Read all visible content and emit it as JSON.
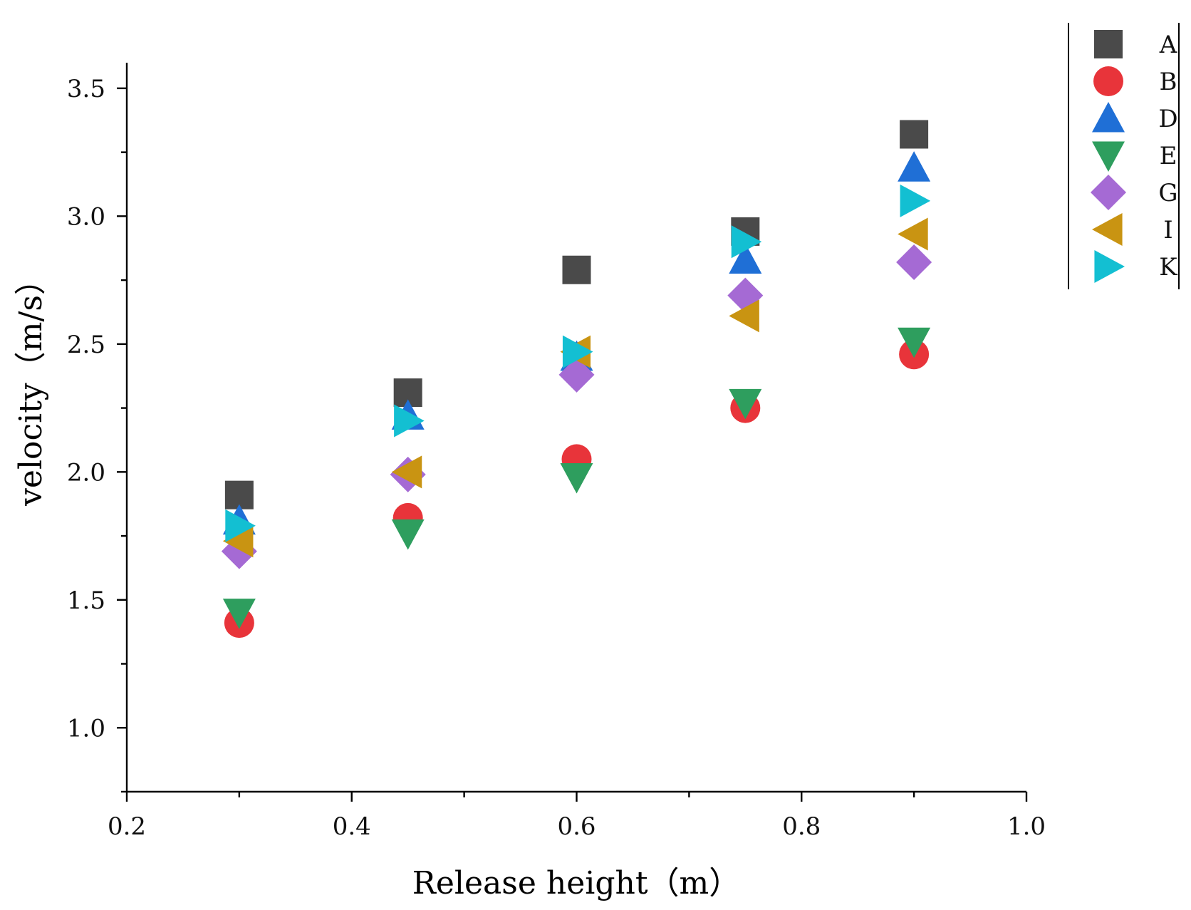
{
  "chart_data": {
    "type": "scatter",
    "title": "",
    "xlabel": "Release height（m）",
    "ylabel": "velocity（m/s）",
    "xlim": [
      0.2,
      1.0
    ],
    "ylim": [
      0.75,
      3.6
    ],
    "x_ticks": [
      0.2,
      0.4,
      0.6,
      0.8,
      1.0
    ],
    "x_tick_labels": [
      "0.2",
      "0.4",
      "0.6",
      "0.8",
      "1.0"
    ],
    "y_ticks": [
      1.0,
      1.5,
      2.0,
      2.5,
      3.0,
      3.5
    ],
    "y_tick_labels": [
      "1.0",
      "1.5",
      "2.0",
      "2.5",
      "3.0",
      "3.5"
    ],
    "grid": false,
    "legend_position": "top-right",
    "x": [
      0.3,
      0.45,
      0.6,
      0.75,
      0.9
    ],
    "series": [
      {
        "name": "A",
        "marker": "square",
        "color": "#4a4a4a",
        "values": [
          1.91,
          2.31,
          2.79,
          2.94,
          3.32
        ]
      },
      {
        "name": "B",
        "marker": "circle",
        "color": "#e8343a",
        "values": [
          1.41,
          1.82,
          2.05,
          2.25,
          2.46
        ]
      },
      {
        "name": "D",
        "marker": "triangle-up",
        "color": "#1f6fd6",
        "values": [
          1.81,
          2.22,
          2.45,
          2.83,
          3.19
        ]
      },
      {
        "name": "E",
        "marker": "triangle-down",
        "color": "#2e9e5e",
        "values": [
          1.45,
          1.76,
          1.98,
          2.27,
          2.51
        ]
      },
      {
        "name": "G",
        "marker": "diamond",
        "color": "#a56ad4",
        "values": [
          1.69,
          1.99,
          2.38,
          2.69,
          2.82
        ]
      },
      {
        "name": "I",
        "marker": "triangle-left",
        "color": "#c99412",
        "values": [
          1.73,
          2.0,
          2.47,
          2.61,
          2.93
        ]
      },
      {
        "name": "K",
        "marker": "triangle-right",
        "color": "#13bfd2",
        "values": [
          1.79,
          2.2,
          2.47,
          2.9,
          3.06
        ]
      }
    ]
  }
}
